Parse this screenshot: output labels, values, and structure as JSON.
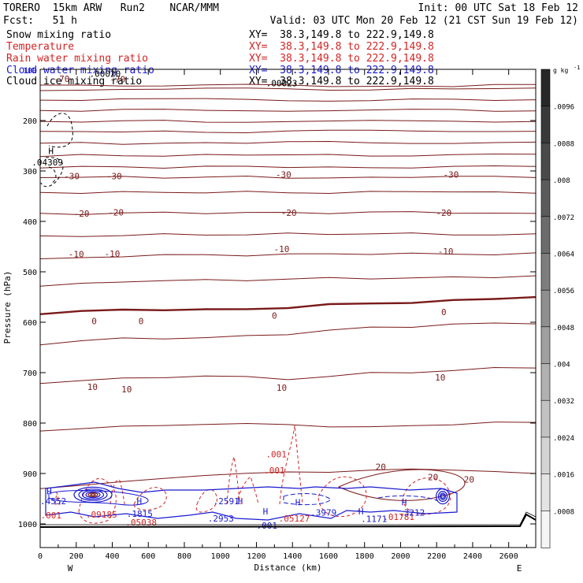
{
  "header": {
    "model": "TORERO  15km ARW   Run2    NCAR/MMM",
    "init": "Init: 00 UTC Sat 18 Feb 12",
    "fcst": "Fcst:   51 h",
    "valid": "Valid: 03 UTC Mon 20 Feb 12 (21 CST Sun 19 Feb 12)",
    "legend": [
      {
        "name": "Snow mixing ratio",
        "xy": "XY=  38.3,149.8 to 222.9,149.8",
        "color": "#000000"
      },
      {
        "name": "Temperature",
        "xy": "XY=  38.3,149.8 to 222.9,149.8",
        "color": "#d42424"
      },
      {
        "name": "Rain water mixing ratio",
        "xy": "XY=  38.3,149.8 to 222.9,149.8",
        "color": "#d42424"
      },
      {
        "name": "Cloud water mixing ratio",
        "xy": "XY=  38.3,149.8 to 222.9,149.8",
        "color": "#1a1ad0"
      },
      {
        "name": "Cloud ice mixing ratio",
        "xy": "XY=  38.3,149.8 to 222.9,149.8",
        "color": "#000000"
      }
    ]
  },
  "chart_data": {
    "type": "contour cross-section",
    "xlabel": "Distance (km)",
    "ylabel": "Pressure (hPa)",
    "xlim": [
      0,
      2750
    ],
    "ylim": [
      1000,
      100
    ],
    "xticks": [
      0,
      200,
      400,
      600,
      800,
      1000,
      1200,
      1400,
      1600,
      1800,
      2000,
      2200,
      2400,
      2600
    ],
    "yticks": [
      200,
      300,
      400,
      500,
      600,
      700,
      800,
      900,
      1000
    ],
    "x_end_labels": {
      "left": "W",
      "right": "E"
    },
    "colorbar": {
      "unit": "g kg",
      "unit_sup": "-1",
      "labels": [
        ".0096",
        ".0088",
        ".008",
        ".0072",
        ".0064",
        ".0056",
        ".0048",
        ".004",
        ".0032",
        ".0024",
        ".0016",
        ".0008"
      ]
    },
    "temperature_contours": [
      {
        "value": -70,
        "pressure": 120
      },
      {
        "value": -30,
        "pressure": 308
      },
      {
        "value": -20,
        "pressure": 383
      },
      {
        "value": -10,
        "pressure": 456
      },
      {
        "value": 0,
        "pressure": 590
      },
      {
        "value": 10,
        "pressure": 721
      },
      {
        "value": 20,
        "pressure": 880
      }
    ],
    "temperature_labels": [
      {
        "text": "-70",
        "x": 120,
        "p": 117
      },
      {
        "text": "-70",
        "x": 430,
        "p": 118
      },
      {
        "text": "-30",
        "x": 175,
        "p": 310
      },
      {
        "text": "-30",
        "x": 410,
        "p": 310
      },
      {
        "text": "-30",
        "x": 1350,
        "p": 307
      },
      {
        "text": "-30",
        "x": 2280,
        "p": 307
      },
      {
        "text": "-20",
        "x": 230,
        "p": 384
      },
      {
        "text": "-20",
        "x": 420,
        "p": 382
      },
      {
        "text": "-20",
        "x": 1380,
        "p": 383
      },
      {
        "text": "-20",
        "x": 2240,
        "p": 383
      },
      {
        "text": "-10",
        "x": 200,
        "p": 465
      },
      {
        "text": "-10",
        "x": 400,
        "p": 464
      },
      {
        "text": "-10",
        "x": 1340,
        "p": 455
      },
      {
        "text": "-10",
        "x": 2250,
        "p": 459
      },
      {
        "text": "0",
        "x": 300,
        "p": 598
      },
      {
        "text": "0",
        "x": 560,
        "p": 598
      },
      {
        "text": "0",
        "x": 1300,
        "p": 587
      },
      {
        "text": "0",
        "x": 2240,
        "p": 580
      },
      {
        "text": "10",
        "x": 290,
        "p": 728
      },
      {
        "text": "10",
        "x": 480,
        "p": 733
      },
      {
        "text": "10",
        "x": 1340,
        "p": 730
      },
      {
        "text": "10",
        "x": 2220,
        "p": 709
      },
      {
        "text": "20",
        "x": 1890,
        "p": 887
      },
      {
        "text": "20",
        "x": 2180,
        "p": 907
      },
      {
        "text": "20",
        "x": 2380,
        "p": 912
      }
    ],
    "rain_labels": [
      {
        "text": ".001",
        "x": 1310,
        "p": 862
      },
      {
        "text": ".001",
        "x": 1300,
        "p": 894
      },
      {
        "text": ".001",
        "x": 60,
        "p": 983
      },
      {
        "text": ".09185",
        "x": 340,
        "p": 981
      },
      {
        "text": ".05038",
        "x": 560,
        "p": 997
      },
      {
        "text": ".05127",
        "x": 1410,
        "p": 989
      },
      {
        "text": ".01781",
        "x": 1990,
        "p": 986
      }
    ],
    "cloud_water_labels": [
      {
        "text": ".4552",
        "x": 0,
        "p": 955
      },
      {
        "text": ".1815",
        "x": 480,
        "p": 980
      },
      {
        "text": ".2591",
        "x": 960,
        "p": 955
      },
      {
        "text": ".3979",
        "x": 1500,
        "p": 977
      },
      {
        "text": ".1171",
        "x": 1780,
        "p": 990
      },
      {
        "text": ".3212",
        "x": 1990,
        "p": 977
      },
      {
        "text": ".2953",
        "x": 930,
        "p": 989
      },
      {
        "text": ".001",
        "x": 1200,
        "p": 1003
      }
    ],
    "cloud_water_highs": [
      {
        "x": 50,
        "p": 935
      },
      {
        "x": 550,
        "p": 955
      },
      {
        "x": 1430,
        "p": 957
      },
      {
        "x": 1780,
        "p": 975
      },
      {
        "x": 2020,
        "p": 957
      },
      {
        "x": 1110,
        "p": 955
      },
      {
        "x": 1250,
        "p": 975
      }
    ],
    "ice_labels": [
      {
        "text": ".04309",
        "x": 40,
        "p": 283
      },
      {
        "text": ".00020",
        "x": 360,
        "p": 107
      },
      {
        "text": ".00023",
        "x": 1340,
        "p": 126
      }
    ],
    "ice_highs": [
      {
        "x": 60,
        "p": 260
      }
    ]
  }
}
